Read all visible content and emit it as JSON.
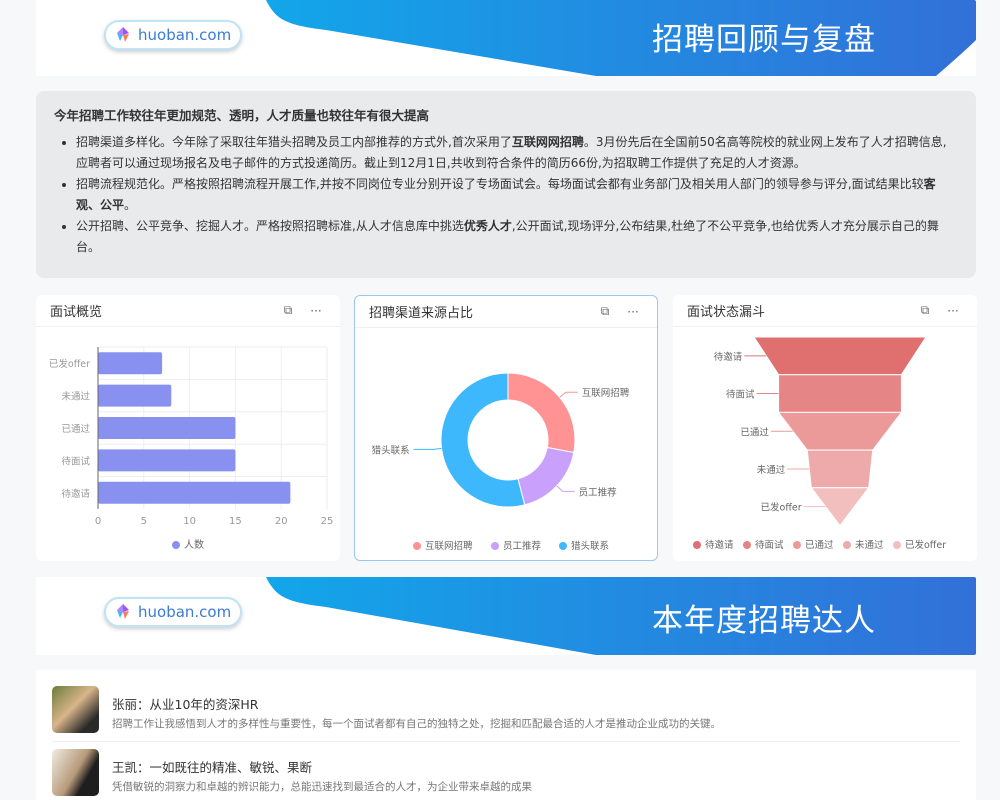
{
  "banner1": {
    "logo": "huoban.com",
    "title": "招聘回顾与复盘"
  },
  "summary": {
    "heading": "今年招聘工作较往年更加规范、透明，人才质量也较往年有很大提高",
    "items": [
      {
        "pre": "招聘渠道多样化。今年除了采取往年猎头招聘及员工内部推荐的方式外,首次采用了",
        "bold": "互联网网招聘",
        "post": "。3月份先后在全国前50名高等院校的就业网上发布了人才招聘信息,应聘者可以通过现场报名及电子邮件的方式投递简历。截止到12月1日,共收到符合条件的简历66份,为招取聘工作提供了充足的人才资源。"
      },
      {
        "pre": "招聘流程规范化。严格按照招聘流程开展工作,并按不同岗位专业分别开设了专场面试会。每场面试会都有业务部门及相关用人部门的领导参与评分,面试结果比较",
        "bold": "客观、公平",
        "post": "。"
      },
      {
        "pre": "公开招聘、公平竞争、挖掘人才。严格按照招聘标准,从人才信息库中挑选",
        "bold": "优秀人才",
        "post": ",公开面试,现场评分,公布结果,杜绝了不公平竞争,也给优秀人才充分展示自己的舞台。"
      }
    ]
  },
  "cards": [
    {
      "title": "面试概览",
      "open_icon": "external-link-icon",
      "more_icon": "more-icon"
    },
    {
      "title": "招聘渠道来源占比",
      "open_icon": "external-link-icon",
      "more_icon": "more-icon"
    },
    {
      "title": "面试状态漏斗",
      "open_icon": "external-link-icon",
      "more_icon": "more-icon"
    }
  ],
  "chart_data": [
    {
      "type": "bar",
      "orientation": "horizontal",
      "categories": [
        "待邀请",
        "待面试",
        "已通过",
        "未通过",
        "已发offer"
      ],
      "series": [
        {
          "name": "人数",
          "values": [
            21,
            15,
            15,
            8,
            7
          ]
        }
      ],
      "xlim": [
        0,
        25
      ],
      "xticks": [
        0,
        5,
        10,
        15,
        20,
        25
      ],
      "grid": true,
      "legend": "bottom",
      "color": "#8891f0"
    },
    {
      "type": "pie",
      "donut": true,
      "categories": [
        "互联网招聘",
        "员工推荐",
        "猎头联系"
      ],
      "values": [
        28,
        18,
        54
      ],
      "colors": [
        "#ff9393",
        "#c9a0fb",
        "#3db8fd"
      ],
      "legend": "bottom"
    },
    {
      "type": "funnel",
      "categories": [
        "待邀请",
        "待面试",
        "已通过",
        "未通过",
        "已发offer"
      ],
      "values": [
        21,
        15,
        15,
        8,
        7
      ],
      "colors": [
        "#e07070",
        "#e68585",
        "#eb9999",
        "#eeaaaa",
        "#f2bebe"
      ],
      "legend": "bottom"
    }
  ],
  "banner2": {
    "logo": "huoban.com",
    "title": "本年度招聘达人"
  },
  "people": [
    {
      "name": "张丽：从业10年的资深HR",
      "desc": "招聘工作让我感悟到人才的多样性与重要性，每一个面试者都有自己的独特之处，挖掘和匹配最合适的人才是推动企业成功的关键。"
    },
    {
      "name": "王凯：一如既往的精准、敏锐、果断",
      "desc": "凭借敏锐的洞察力和卓越的辨识能力，总能迅速找到最适合的人才，为企业带来卓越的成果"
    }
  ]
}
